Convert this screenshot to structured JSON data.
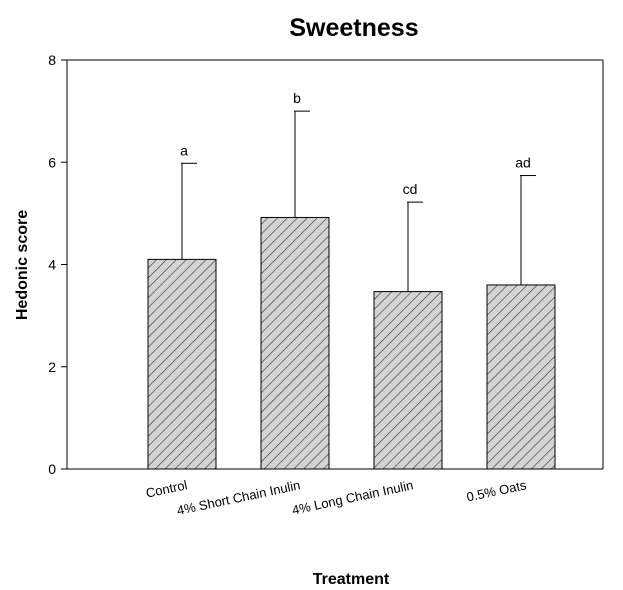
{
  "chart_data": {
    "type": "bar",
    "title": "Sweetness",
    "xlabel": "Treatment",
    "ylabel": "Hedonic score",
    "ylim": [
      0,
      8
    ],
    "yticks": [
      0,
      2,
      4,
      6,
      8
    ],
    "categories": [
      "Control",
      "4% Short Chain Inulin",
      "4% Long Chain Inulin",
      "0.5% Oats"
    ],
    "values": [
      4.1,
      4.92,
      3.47,
      3.6
    ],
    "error_upper": [
      5.98,
      7.0,
      5.22,
      5.74
    ],
    "significance_labels": [
      "a",
      "b",
      "cd",
      "ad"
    ],
    "bar_fill": "hatched grey",
    "colors": {
      "bar_fill": "#d3d3d3",
      "hatch": "#333333",
      "axis": "#000000"
    },
    "grid": false,
    "legend": "none"
  }
}
